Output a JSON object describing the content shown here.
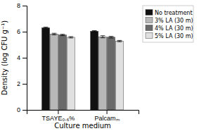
{
  "chart_data": {
    "type": "bar",
    "xlabel": "Culture medium",
    "ylabel": "Density (log CFU g⁻¹)",
    "categories": [
      "TSAYE₀.₆%",
      "Palcamₘ"
    ],
    "series": [
      {
        "name": "No treatment",
        "color": "#111111",
        "values": [
          6.3,
          6.04
        ],
        "errors": [
          0.05,
          0.04
        ]
      },
      {
        "name": "3% LA (30 m)",
        "color": "#b8b8b8",
        "values": [
          5.82,
          5.61
        ],
        "errors": [
          0.06,
          0.08
        ]
      },
      {
        "name": "4% LA (30 m)",
        "color": "#6a6a6a",
        "values": [
          5.75,
          5.58
        ],
        "errors": [
          0.05,
          0.06
        ]
      },
      {
        "name": "5% LA (30 m)",
        "color": "#e0e0e0",
        "values": [
          5.57,
          5.28
        ],
        "errors": [
          0.05,
          0.05
        ]
      }
    ],
    "ylim": [
      0,
      8
    ],
    "yticks": [
      0,
      2,
      4,
      6,
      8
    ],
    "grid": false,
    "legend": "upper right"
  }
}
